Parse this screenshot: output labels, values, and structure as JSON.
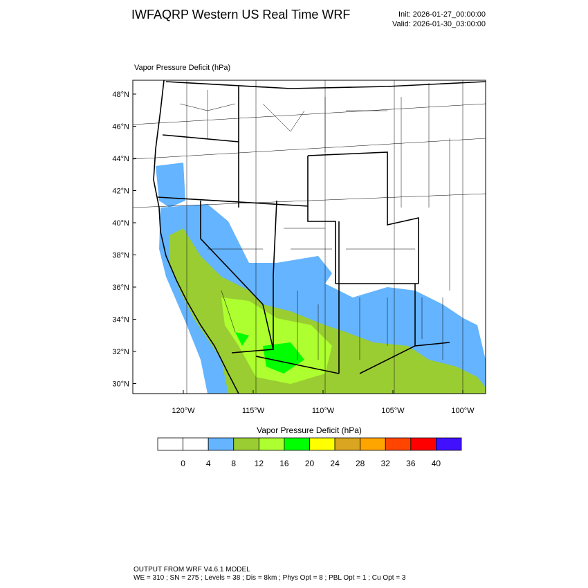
{
  "header": {
    "title": "IWFAQRP Western US Real Time WRF",
    "init": "Init: 2026-01-27_00:00:00",
    "valid": "Valid: 2026-01-30_03:00:00"
  },
  "map": {
    "panel_title": "Vapor Pressure Deficit   (hPa)",
    "lat_labels": [
      "48°N",
      "46°N",
      "44°N",
      "42°N",
      "40°N",
      "38°N",
      "36°N",
      "34°N",
      "32°N",
      "30°N"
    ],
    "lon_labels": [
      "120°W",
      "115°W",
      "110°W",
      "105°W",
      "100°W"
    ]
  },
  "colorbar": {
    "title": "Vapor Pressure Deficit  (hPa)",
    "labels": [
      "0",
      "4",
      "8",
      "12",
      "16",
      "20",
      "24",
      "28",
      "32",
      "36",
      "40"
    ],
    "colors": [
      "#ffffff",
      "#ffffff",
      "#64b4ff",
      "#9acd32",
      "#adff2f",
      "#00ff00",
      "#ffff00",
      "#daa520",
      "#ffa500",
      "#ff4500",
      "#ff0000",
      "#4010ff"
    ]
  },
  "footer": {
    "line1": "OUTPUT FROM WRF V4.6.1 MODEL",
    "line2": "WE = 310 ; SN = 275 ; Levels = 38 ; Dis = 8km ; Phys Opt = 8 ; PBL Opt = 1 ; Cu Opt = 3"
  }
}
